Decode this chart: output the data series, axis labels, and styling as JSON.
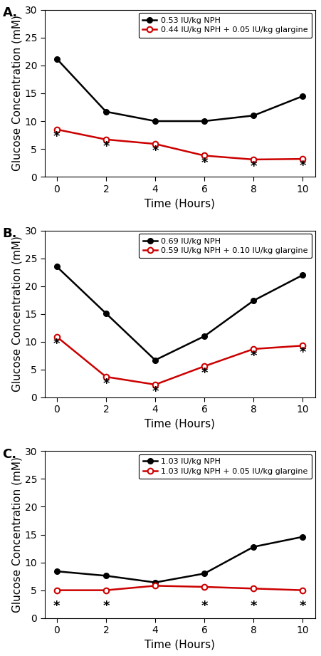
{
  "panels": [
    {
      "label": "A.",
      "black_label": "0.53 IU/kg NPH",
      "red_label": "0.44 IU/kg NPH + 0.05 IU/kg glargine",
      "x": [
        0,
        2,
        4,
        6,
        8,
        10
      ],
      "black_y": [
        21.2,
        11.7,
        10.0,
        10.0,
        11.0,
        14.5
      ],
      "red_y": [
        8.5,
        6.7,
        5.9,
        3.8,
        3.1,
        3.2
      ],
      "star_x": [
        0,
        2,
        4,
        6,
        8,
        10
      ],
      "star_y": [
        7.2,
        5.4,
        4.6,
        2.5,
        1.8,
        1.9
      ]
    },
    {
      "label": "B.",
      "black_label": "0.69 IU/kg NPH",
      "red_label": "0.59 IU/kg NPH + 0.10 IU/kg glargine",
      "x": [
        0,
        2,
        4,
        6,
        8,
        10
      ],
      "black_y": [
        23.5,
        15.1,
        6.7,
        11.0,
        17.4,
        22.0
      ],
      "red_y": [
        10.9,
        3.7,
        2.3,
        5.6,
        8.7,
        9.3
      ],
      "star_x": [
        0,
        2,
        4,
        6,
        8,
        10
      ],
      "star_y": [
        9.6,
        2.4,
        1.0,
        4.3,
        7.4,
        8.0
      ]
    },
    {
      "label": "C.",
      "black_label": "1.03 IU/kg NPH",
      "red_label": "1.03 IU/kg NPH + 0.05 IU/kg glargine",
      "x": [
        0,
        2,
        4,
        6,
        8,
        10
      ],
      "black_y": [
        8.4,
        7.6,
        6.4,
        8.0,
        12.8,
        14.6
      ],
      "red_y": [
        5.0,
        5.0,
        5.8,
        5.6,
        5.3,
        5.0
      ],
      "star_x": [
        0,
        2,
        6,
        8,
        10
      ],
      "star_y": [
        2.2,
        2.2,
        2.2,
        2.2,
        2.2
      ]
    }
  ],
  "ylim": [
    0,
    30
  ],
  "yticks": [
    0,
    5,
    10,
    15,
    20,
    25,
    30
  ],
  "xticks": [
    0,
    2,
    4,
    6,
    8,
    10
  ],
  "xlabel": "Time (Hours)",
  "ylabel": "Glucose Concentration (mM)",
  "black_color": "#000000",
  "red_color": "#cc0000",
  "bg_color": "#ffffff",
  "legend_fontsize": 8.0,
  "label_fontsize": 13,
  "axis_fontsize": 11,
  "tick_fontsize": 10,
  "star_fontsize": 13
}
